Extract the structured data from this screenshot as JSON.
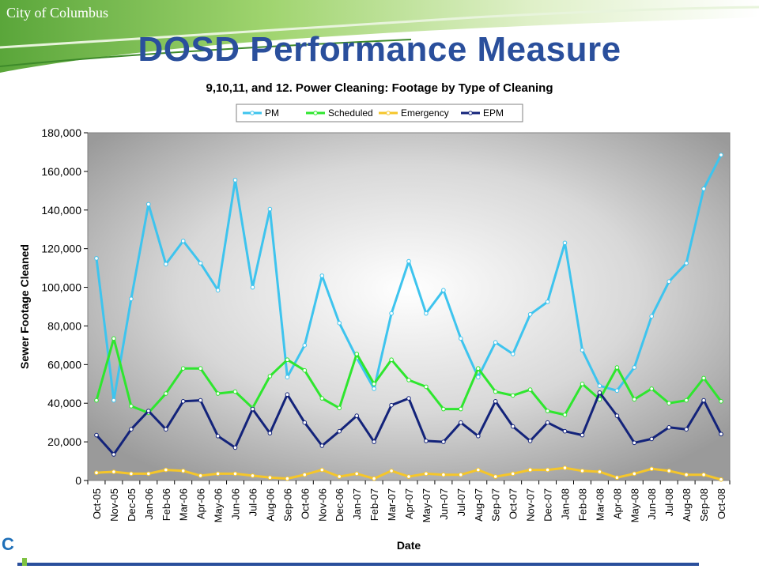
{
  "header": {
    "org": "City of Columbus",
    "title": "DOSD Performance Measure"
  },
  "chart_data": {
    "type": "line",
    "title": "9,10,11, and 12. Power Cleaning: Footage by Type of Cleaning",
    "xlabel": "Date",
    "ylabel": "Sewer Footage Cleaned",
    "ylim": [
      0,
      180000
    ],
    "yticks": [
      "0",
      "20,000",
      "40,000",
      "60,000",
      "80,000",
      "100,000",
      "120,000",
      "140,000",
      "160,000",
      "180,000"
    ],
    "grid": false,
    "legend": "top",
    "categories": [
      "Oct-05",
      "Nov-05",
      "Dec-05",
      "Jan-06",
      "Feb-06",
      "Mar-06",
      "Apr-06",
      "May-06",
      "Jun-06",
      "Jul-06",
      "Aug-06",
      "Sep-06",
      "Oct-06",
      "Nov-06",
      "Dec-06",
      "Jan-07",
      "Feb-07",
      "Mar-07",
      "Apr-07",
      "May-07",
      "Jun-07",
      "Jul-07",
      "Aug-07",
      "Sep-07",
      "Oct-07",
      "Nov-07",
      "Dec-07",
      "Jan-08",
      "Feb-08",
      "Mar-08",
      "Apr-08",
      "May-08",
      "Jun-08",
      "Jul-08",
      "Aug-08",
      "Sep-08",
      "Oct-08"
    ],
    "series": [
      {
        "name": "PM",
        "color": "#3ec4ee",
        "values": [
          115000,
          41500,
          94000,
          143000,
          112000,
          124000,
          112500,
          98500,
          155500,
          100000,
          140500,
          53500,
          70000,
          106000,
          81500,
          63500,
          47500,
          86500,
          113500,
          86500,
          98500,
          73500,
          53500,
          71500,
          65500,
          86000,
          92500,
          123000,
          67500,
          49000,
          46500,
          58500,
          85000,
          103000,
          112500,
          151000,
          168500
        ]
      },
      {
        "name": "Scheduled",
        "color": "#2ee62e",
        "values": [
          41500,
          73500,
          38500,
          35000,
          45000,
          58000,
          58000,
          45000,
          46000,
          37500,
          54000,
          62500,
          57000,
          42500,
          37500,
          65500,
          50000,
          62500,
          52000,
          48500,
          37000,
          37000,
          58000,
          46000,
          44000,
          47000,
          36000,
          34000,
          50000,
          42000,
          58500,
          42000,
          47500,
          40000,
          41500,
          53000,
          41000
        ]
      },
      {
        "name": "Emergency",
        "color": "#f5c62a",
        "values": [
          4000,
          4500,
          3500,
          3500,
          5500,
          5000,
          2500,
          3500,
          3500,
          2500,
          1500,
          1000,
          3000,
          5500,
          2000,
          3500,
          1000,
          5000,
          2000,
          3500,
          3000,
          3000,
          5500,
          2000,
          3500,
          5500,
          5500,
          6500,
          5000,
          4500,
          1500,
          3500,
          6000,
          5000,
          3000,
          3000,
          500
        ]
      },
      {
        "name": "EPM",
        "color": "#13237a",
        "values": [
          23500,
          13500,
          26500,
          36000,
          26500,
          41000,
          41500,
          23000,
          17000,
          37000,
          24500,
          44500,
          30000,
          18000,
          25500,
          33500,
          20000,
          39000,
          42500,
          20500,
          20000,
          30000,
          23000,
          41000,
          28000,
          20500,
          30000,
          25500,
          23500,
          45500,
          33500,
          19500,
          21500,
          27500,
          26500,
          41500,
          24000
        ]
      }
    ]
  }
}
